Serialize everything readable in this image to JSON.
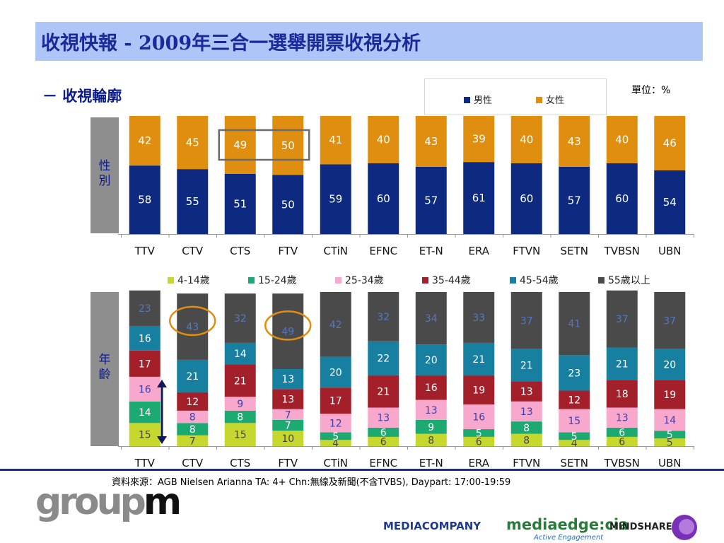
{
  "title": "收視快報 - 2009年三合一選舉開票收視分析",
  "subtitle": "－ 收視輪廓",
  "unit_label": "單位：%",
  "gender_side_label": "性別",
  "age_side_label": "年齡",
  "gender_legend": [
    {
      "name": "男性",
      "color": "#0d2a80"
    },
    {
      "name": "女性",
      "color": "#e08e10"
    }
  ],
  "age_legend": [
    {
      "name": "4-14歲",
      "color": "#c6d82e"
    },
    {
      "name": "15-24歲",
      "color": "#1daa72"
    },
    {
      "name": "25-34歲",
      "color": "#f7a8cc"
    },
    {
      "name": "35-44歲",
      "color": "#a3202a"
    },
    {
      "name": "45-54歲",
      "color": "#177fa0"
    },
    {
      "name": "55歲以上",
      "color": "#4a4a4a"
    }
  ],
  "chart_data": [
    {
      "type": "bar",
      "stacked": true,
      "categories": [
        "TTV",
        "CTV",
        "CTS",
        "FTV",
        "CTiN",
        "EFNC",
        "ET-N",
        "ERA",
        "FTVN",
        "SETN",
        "TVBSN",
        "UBN"
      ],
      "series": [
        {
          "name": "男性",
          "values": [
            58,
            55,
            51,
            50,
            59,
            60,
            57,
            61,
            60,
            57,
            60,
            54
          ]
        },
        {
          "name": "女性",
          "values": [
            42,
            45,
            49,
            50,
            41,
            40,
            43,
            39,
            40,
            43,
            40,
            46
          ]
        }
      ],
      "ylim": [
        0,
        100
      ],
      "highlighted": [
        "CTS",
        "FTV"
      ]
    },
    {
      "type": "bar",
      "stacked": true,
      "categories": [
        "TTV",
        "CTV",
        "CTS",
        "FTV",
        "CTiN",
        "EFNC",
        "ET-N",
        "ERA",
        "FTVN",
        "SETN",
        "TVBSN",
        "UBN"
      ],
      "series": [
        {
          "name": "4-14歲",
          "values": [
            15,
            7,
            15,
            10,
            4,
            6,
            8,
            6,
            8,
            4,
            6,
            5
          ]
        },
        {
          "name": "15-24歲",
          "values": [
            14,
            8,
            8,
            7,
            5,
            6,
            9,
            5,
            8,
            5,
            6,
            5
          ]
        },
        {
          "name": "25-34歲",
          "values": [
            16,
            8,
            9,
            7,
            12,
            13,
            13,
            16,
            13,
            15,
            13,
            14
          ]
        },
        {
          "name": "35-44歲",
          "values": [
            17,
            12,
            21,
            13,
            17,
            21,
            16,
            19,
            13,
            12,
            18,
            19
          ]
        },
        {
          "name": "45-54歲",
          "values": [
            16,
            21,
            14,
            13,
            20,
            22,
            20,
            21,
            21,
            23,
            21,
            20
          ]
        },
        {
          "name": "55歲以上",
          "values": [
            23,
            43,
            32,
            49,
            42,
            32,
            34,
            33,
            37,
            41,
            37,
            37
          ]
        }
      ],
      "ylim": [
        0,
        100
      ],
      "highlighted": [
        "CTV",
        "FTV"
      ]
    }
  ],
  "source_note": "資料來源：AGB Nielsen Arianna TA: 4+ Chn:無線及新聞(不含TVBS), Daypart: 17:00-19:59",
  "logos": {
    "groupm": "groupm",
    "mediacompany": "MEDIACOMPANY",
    "mediaedge": "mediaedge:cia",
    "mediaedge_tagline": "Active Engagement",
    "mindshare": "MINDSHARE"
  }
}
